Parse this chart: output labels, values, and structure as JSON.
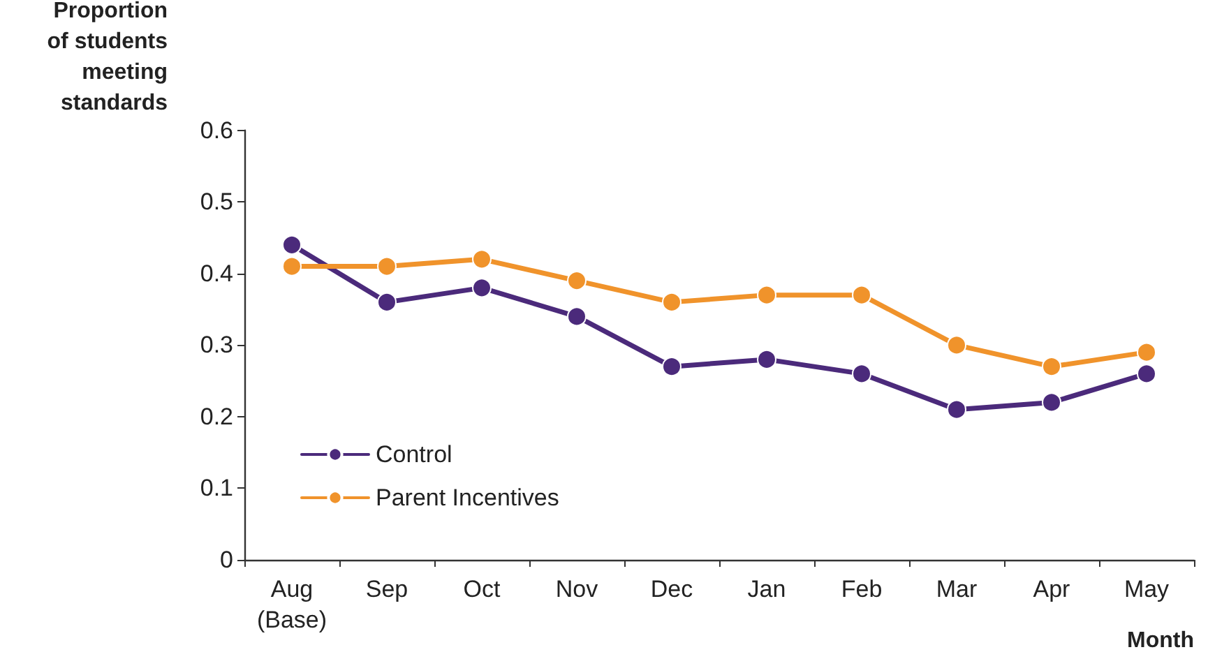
{
  "chart_data": {
    "type": "line",
    "xlabel": "Month",
    "ylabel": "Proportion\nof students\nmeeting\nstandards",
    "categories": [
      "Aug\n(Base)",
      "Sep",
      "Oct",
      "Nov",
      "Dec",
      "Jan",
      "Feb",
      "Mar",
      "Apr",
      "May"
    ],
    "series": [
      {
        "name": "Control",
        "color": "#4b2a7b",
        "values": [
          0.44,
          0.36,
          0.38,
          0.34,
          0.27,
          0.28,
          0.26,
          0.21,
          0.22,
          0.26
        ]
      },
      {
        "name": "Parent Incentives",
        "color": "#f0932b",
        "values": [
          0.41,
          0.41,
          0.42,
          0.39,
          0.36,
          0.37,
          0.37,
          0.3,
          0.27,
          0.29
        ]
      }
    ],
    "ylim": [
      0,
      0.6
    ],
    "yticks": [
      0,
      0.1,
      0.2,
      0.3,
      0.4,
      0.5,
      0.6
    ],
    "grid": false,
    "legend": "bottom left",
    "marker": "circle",
    "line_style": "solid"
  }
}
